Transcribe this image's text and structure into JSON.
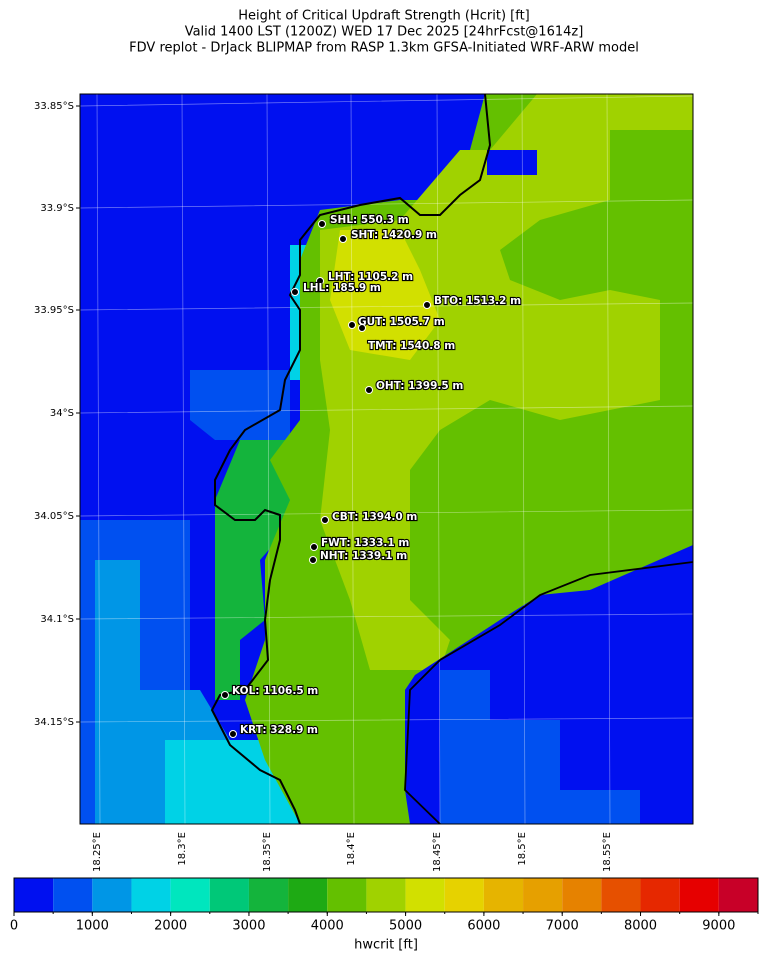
{
  "title": [
    "Height of Critical Updraft Strength (Hcrit) [ft]",
    "Valid 1400 LST (1200Z) WED 17 Dec 2025 [24hrFcst@1614z]",
    "FDV replot - DrJack BLIPMAP from RASP 1.3km GFSA-Initiated WRF-ARW model"
  ],
  "map": {
    "lat_labels": [
      "33.85°S",
      "33.9°S",
      "33.95°S",
      "34°S",
      "34.05°S",
      "34.1°S",
      "34.15°S"
    ],
    "lon_labels": [
      "18.25°E",
      "18.3°E",
      "18.35°E",
      "18.4°E",
      "18.45°E",
      "18.5°E",
      "18.55°E"
    ],
    "stations": [
      "SHL: 550.3 m",
      "SHT: 1420.9 m",
      "LHT: 1105.2 m",
      "LHL: 185.9 m",
      "BTO: 1513.2 m",
      "GUT: 1505.7 m",
      "TMT: 1540.8 m",
      "OHT: 1399.5 m",
      "CBT: 1394.0 m",
      "FWT: 1333.1 m",
      "NHT: 1339.1 m",
      "KOL: 1106.5 m",
      "KRT: 328.9 m"
    ]
  },
  "colorbar": {
    "label": "hwcrit [ft]",
    "lim": [
      0,
      9500
    ],
    "ticks": [
      0,
      1000,
      2000,
      3000,
      4000,
      5000,
      6000,
      7000,
      8000,
      9000
    ],
    "bounds": [
      0,
      500,
      1000,
      1500,
      2000,
      2500,
      3000,
      3500,
      4000,
      4500,
      5000,
      5500,
      6000,
      6500,
      7000,
      7500,
      8000,
      8500,
      9000,
      9500
    ],
    "colors": [
      "#0010f0",
      "#0050f0",
      "#0096e6",
      "#00d2e6",
      "#00e6be",
      "#00c878",
      "#14b43c",
      "#1eaa14",
      "#64c000",
      "#a0d200",
      "#d2e000",
      "#e6d200",
      "#e6b400",
      "#e6a000",
      "#e68200",
      "#e65000",
      "#e62800",
      "#e60000",
      "#c80028"
    ]
  }
}
